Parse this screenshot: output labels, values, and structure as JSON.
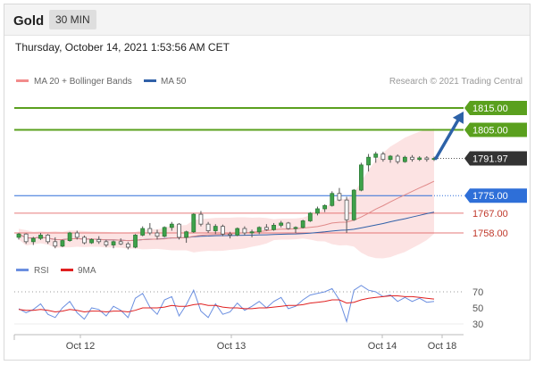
{
  "header": {
    "title": "Gold",
    "timeframe": "30 MIN"
  },
  "datetime": "Thursday, October 14, 2021 1:53:56 AM CET",
  "legend": {
    "items": [
      {
        "label": "MA 20 + Bollinger Bands",
        "color": "#f28b8b"
      },
      {
        "label": "MA 50",
        "color": "#3060a8"
      }
    ],
    "credit": "Research © 2021 Trading Central"
  },
  "colors": {
    "resistance": "#5aa01e",
    "support": "#2e6fd8",
    "minor": "#e05a5a",
    "price_tag": "#333333",
    "arrow": "#2d62a8",
    "candle": "#555555",
    "bb_fill": "#fbdada"
  },
  "chart_data": [
    {
      "type": "candlestick",
      "title": "",
      "x_ticks": [
        "Oct 12",
        "Oct 13",
        "Oct 14",
        "Oct 18"
      ],
      "current_price": 1791.97,
      "target_price": 1815.0,
      "levels": [
        {
          "value": 1815.0,
          "label": "1815.00",
          "kind": "resistance"
        },
        {
          "value": 1805.0,
          "label": "1805.00",
          "kind": "resistance"
        },
        {
          "value": 1791.97,
          "label": "1791.97",
          "kind": "price"
        },
        {
          "value": 1775.0,
          "label": "1775.00",
          "kind": "support"
        },
        {
          "value": 1767.0,
          "label": "1767.00",
          "kind": "minor"
        },
        {
          "value": 1758.0,
          "label": "1758.00",
          "kind": "minor"
        }
      ],
      "candles": [
        [
          1756,
          1758,
          1755,
          1757.5
        ],
        [
          1757.5,
          1757.8,
          1753,
          1754
        ],
        [
          1754,
          1756.2,
          1752.5,
          1755.5
        ],
        [
          1755.5,
          1758,
          1754.8,
          1757
        ],
        [
          1757,
          1757.5,
          1753,
          1754
        ],
        [
          1754,
          1756,
          1751,
          1752
        ],
        [
          1752,
          1755,
          1751.5,
          1754.5
        ],
        [
          1754.5,
          1758.5,
          1754,
          1758
        ],
        [
          1758,
          1759,
          1755,
          1756
        ],
        [
          1756,
          1756.8,
          1752.8,
          1753.5
        ],
        [
          1753.5,
          1755.5,
          1753,
          1755
        ],
        [
          1755,
          1756.5,
          1753,
          1754
        ],
        [
          1754,
          1754.8,
          1751.5,
          1752.5
        ],
        [
          1752.5,
          1754.5,
          1751,
          1754
        ],
        [
          1754,
          1755.5,
          1752.5,
          1753
        ],
        [
          1753,
          1753.8,
          1750.5,
          1751.5
        ],
        [
          1751.5,
          1757.5,
          1751,
          1757
        ],
        [
          1757,
          1761,
          1756.5,
          1760
        ],
        [
          1760,
          1762.5,
          1757,
          1758
        ],
        [
          1758,
          1759.5,
          1755,
          1756.5
        ],
        [
          1756.5,
          1761,
          1756,
          1760.5
        ],
        [
          1760.5,
          1763,
          1759,
          1762
        ],
        [
          1762,
          1762.5,
          1755,
          1756
        ],
        [
          1756,
          1759,
          1753.5,
          1758.5
        ],
        [
          1758.5,
          1767,
          1758,
          1766.5
        ],
        [
          1766.5,
          1768,
          1761,
          1762
        ],
        [
          1762,
          1763,
          1758,
          1759
        ],
        [
          1759,
          1762,
          1757.5,
          1761
        ],
        [
          1761,
          1761.8,
          1756.5,
          1757.5
        ],
        [
          1757.5,
          1758.5,
          1755.5,
          1757
        ],
        [
          1757,
          1760.5,
          1756.5,
          1760
        ],
        [
          1760,
          1761,
          1757,
          1758
        ],
        [
          1758,
          1759.5,
          1756,
          1758.5
        ],
        [
          1758.5,
          1761,
          1757.5,
          1760.5
        ],
        [
          1760.5,
          1762,
          1759,
          1759.5
        ],
        [
          1759.5,
          1762.5,
          1759,
          1761.5
        ],
        [
          1761.5,
          1763.5,
          1760.5,
          1762.5
        ],
        [
          1762.5,
          1763,
          1759.5,
          1760
        ],
        [
          1760,
          1761,
          1758,
          1760.5
        ],
        [
          1760.5,
          1764,
          1760,
          1763.5
        ],
        [
          1763.5,
          1767.5,
          1763,
          1767
        ],
        [
          1767,
          1770,
          1766,
          1769
        ],
        [
          1769,
          1771,
          1767.5,
          1770.5
        ],
        [
          1770.5,
          1777,
          1770,
          1776
        ],
        [
          1776,
          1778.5,
          1772.5,
          1773
        ],
        [
          1773,
          1774.5,
          1758,
          1764
        ],
        [
          1764,
          1778,
          1763.5,
          1777.5
        ],
        [
          1777.5,
          1790,
          1777,
          1789
        ],
        [
          1789,
          1794,
          1786,
          1792.5
        ],
        [
          1792.5,
          1795,
          1790,
          1794
        ],
        [
          1794,
          1795,
          1790.5,
          1791.5
        ],
        [
          1791.5,
          1793.5,
          1790,
          1793
        ],
        [
          1793,
          1793.8,
          1789.5,
          1790.5
        ],
        [
          1790.5,
          1793.2,
          1790,
          1792.5
        ],
        [
          1792.5,
          1793.5,
          1790.5,
          1791.5
        ],
        [
          1791.5,
          1793,
          1790.8,
          1792.2
        ],
        [
          1792.2,
          1793,
          1790.5,
          1791.5
        ],
        [
          1791.5,
          1792.8,
          1790.8,
          1791.97
        ]
      ],
      "rsi_panel": {
        "legend": [
          "RSI",
          "9MA"
        ],
        "y_ticks": [
          70,
          50,
          30
        ],
        "rsi": [
          49,
          44,
          48,
          55,
          42,
          38,
          50,
          58,
          44,
          36,
          50,
          48,
          40,
          52,
          47,
          38,
          62,
          68,
          51,
          42,
          60,
          64,
          40,
          54,
          72,
          46,
          38,
          55,
          42,
          45,
          56,
          47,
          52,
          58,
          50,
          58,
          63,
          49,
          52,
          60,
          66,
          68,
          70,
          74,
          60,
          33,
          72,
          78,
          72,
          70,
          64,
          66,
          58,
          63,
          58,
          62,
          57,
          58
        ],
        "ma9": [
          48,
          47,
          47,
          48,
          47,
          45,
          46,
          48,
          47,
          45,
          46,
          46,
          45,
          46,
          46,
          45,
          47,
          50,
          50,
          50,
          51,
          53,
          52,
          52,
          54,
          55,
          53,
          53,
          51,
          50,
          50,
          49,
          49,
          50,
          50,
          51,
          52,
          53,
          53,
          54,
          56,
          57,
          58,
          60,
          60,
          56,
          57,
          60,
          62,
          63,
          64,
          65,
          65,
          64,
          64,
          63,
          62,
          61
        ]
      }
    }
  ]
}
